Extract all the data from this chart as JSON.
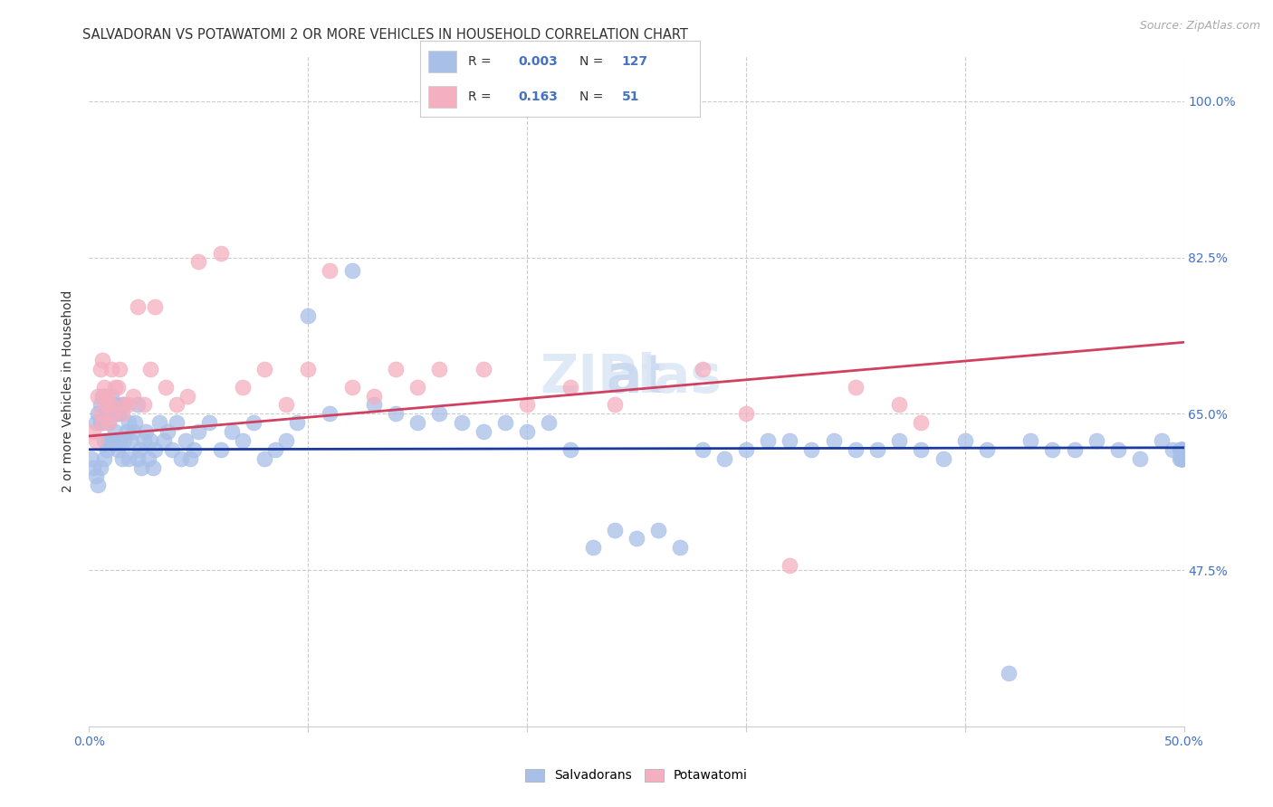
{
  "title": "SALVADORAN VS POTAWATOMI 2 OR MORE VEHICLES IN HOUSEHOLD CORRELATION CHART",
  "source": "Source: ZipAtlas.com",
  "xlabel_salvadoran": "Salvadorans",
  "xlabel_potawatomi": "Potawatomi",
  "ylabel": "2 or more Vehicles in Household",
  "xlim": [
    0.0,
    0.5
  ],
  "ylim": [
    0.3,
    1.05
  ],
  "yticks": [
    0.475,
    0.65,
    0.825,
    1.0
  ],
  "ytick_labels": [
    "47.5%",
    "65.0%",
    "82.5%",
    "100.0%"
  ],
  "xticks": [
    0.0,
    0.1,
    0.2,
    0.3,
    0.4,
    0.5
  ],
  "xtick_labels": [
    "0.0%",
    "",
    "",
    "",
    "",
    "50.0%"
  ],
  "salvadoran_color": "#a8bfe8",
  "potawatomi_color": "#f4afc0",
  "salvadoran_line_color": "#1a3a9c",
  "potawatomi_line_color": "#d04060",
  "legend_R_sal": "0.003",
  "legend_N_sal": "127",
  "legend_R_pot": "0.163",
  "legend_N_pot": "51",
  "watermark": "ZIPatlas",
  "background_color": "#ffffff",
  "grid_color": "#cccccc",
  "title_color": "#333333",
  "axis_color": "#4472c4",
  "sal_line_y0": 0.61,
  "sal_line_y1": 0.612,
  "pot_line_y0": 0.625,
  "pot_line_y1": 0.73,
  "sal_x": [
    0.001,
    0.002,
    0.003,
    0.003,
    0.004,
    0.004,
    0.005,
    0.005,
    0.005,
    0.006,
    0.006,
    0.007,
    0.007,
    0.008,
    0.008,
    0.009,
    0.009,
    0.009,
    0.01,
    0.01,
    0.01,
    0.011,
    0.011,
    0.012,
    0.012,
    0.013,
    0.013,
    0.014,
    0.014,
    0.015,
    0.015,
    0.016,
    0.016,
    0.017,
    0.018,
    0.018,
    0.019,
    0.02,
    0.021,
    0.022,
    0.022,
    0.023,
    0.024,
    0.025,
    0.026,
    0.027,
    0.028,
    0.029,
    0.03,
    0.032,
    0.034,
    0.036,
    0.038,
    0.04,
    0.042,
    0.044,
    0.046,
    0.048,
    0.05,
    0.055,
    0.06,
    0.065,
    0.07,
    0.075,
    0.08,
    0.085,
    0.09,
    0.095,
    0.1,
    0.11,
    0.12,
    0.13,
    0.14,
    0.15,
    0.16,
    0.17,
    0.18,
    0.19,
    0.2,
    0.21,
    0.22,
    0.23,
    0.24,
    0.25,
    0.26,
    0.27,
    0.28,
    0.29,
    0.3,
    0.31,
    0.32,
    0.33,
    0.34,
    0.35,
    0.36,
    0.37,
    0.38,
    0.39,
    0.4,
    0.41,
    0.42,
    0.43,
    0.44,
    0.45,
    0.46,
    0.47,
    0.48,
    0.49,
    0.495,
    0.498,
    0.498,
    0.499,
    0.499,
    0.499,
    0.499,
    0.499,
    0.499,
    0.499,
    0.499,
    0.499,
    0.499,
    0.499,
    0.499,
    0.499,
    0.499,
    0.499,
    0.499
  ],
  "sal_y": [
    0.6,
    0.59,
    0.64,
    0.58,
    0.65,
    0.57,
    0.66,
    0.64,
    0.59,
    0.67,
    0.64,
    0.62,
    0.6,
    0.65,
    0.61,
    0.66,
    0.64,
    0.62,
    0.67,
    0.65,
    0.62,
    0.65,
    0.62,
    0.66,
    0.63,
    0.65,
    0.61,
    0.65,
    0.62,
    0.66,
    0.6,
    0.66,
    0.62,
    0.63,
    0.64,
    0.6,
    0.62,
    0.63,
    0.64,
    0.6,
    0.66,
    0.61,
    0.59,
    0.62,
    0.63,
    0.6,
    0.62,
    0.59,
    0.61,
    0.64,
    0.62,
    0.63,
    0.61,
    0.64,
    0.6,
    0.62,
    0.6,
    0.61,
    0.63,
    0.64,
    0.61,
    0.63,
    0.62,
    0.64,
    0.6,
    0.61,
    0.62,
    0.64,
    0.76,
    0.65,
    0.81,
    0.66,
    0.65,
    0.64,
    0.65,
    0.64,
    0.63,
    0.64,
    0.63,
    0.64,
    0.61,
    0.5,
    0.52,
    0.51,
    0.52,
    0.5,
    0.61,
    0.6,
    0.61,
    0.62,
    0.62,
    0.61,
    0.62,
    0.61,
    0.61,
    0.62,
    0.61,
    0.6,
    0.62,
    0.61,
    0.36,
    0.62,
    0.61,
    0.61,
    0.62,
    0.61,
    0.6,
    0.62,
    0.61,
    0.6,
    0.61,
    0.6,
    0.61,
    0.6,
    0.61,
    0.6,
    0.61,
    0.6,
    0.61,
    0.6,
    0.61,
    0.6,
    0.61,
    0.6,
    0.61,
    0.6,
    0.61
  ],
  "pot_x": [
    0.002,
    0.003,
    0.004,
    0.005,
    0.005,
    0.006,
    0.006,
    0.007,
    0.007,
    0.008,
    0.008,
    0.009,
    0.01,
    0.01,
    0.011,
    0.012,
    0.013,
    0.014,
    0.015,
    0.016,
    0.018,
    0.02,
    0.022,
    0.025,
    0.028,
    0.03,
    0.035,
    0.04,
    0.045,
    0.05,
    0.06,
    0.07,
    0.08,
    0.09,
    0.1,
    0.11,
    0.12,
    0.13,
    0.14,
    0.15,
    0.16,
    0.18,
    0.2,
    0.22,
    0.24,
    0.28,
    0.3,
    0.32,
    0.35,
    0.37,
    0.38
  ],
  "pot_y": [
    0.63,
    0.62,
    0.67,
    0.7,
    0.65,
    0.64,
    0.71,
    0.67,
    0.68,
    0.66,
    0.67,
    0.64,
    0.66,
    0.7,
    0.65,
    0.68,
    0.68,
    0.7,
    0.65,
    0.66,
    0.66,
    0.67,
    0.77,
    0.66,
    0.7,
    0.77,
    0.68,
    0.66,
    0.67,
    0.82,
    0.83,
    0.68,
    0.7,
    0.66,
    0.7,
    0.81,
    0.68,
    0.67,
    0.7,
    0.68,
    0.7,
    0.7,
    0.66,
    0.68,
    0.66,
    0.7,
    0.65,
    0.48,
    0.68,
    0.66,
    0.64
  ]
}
